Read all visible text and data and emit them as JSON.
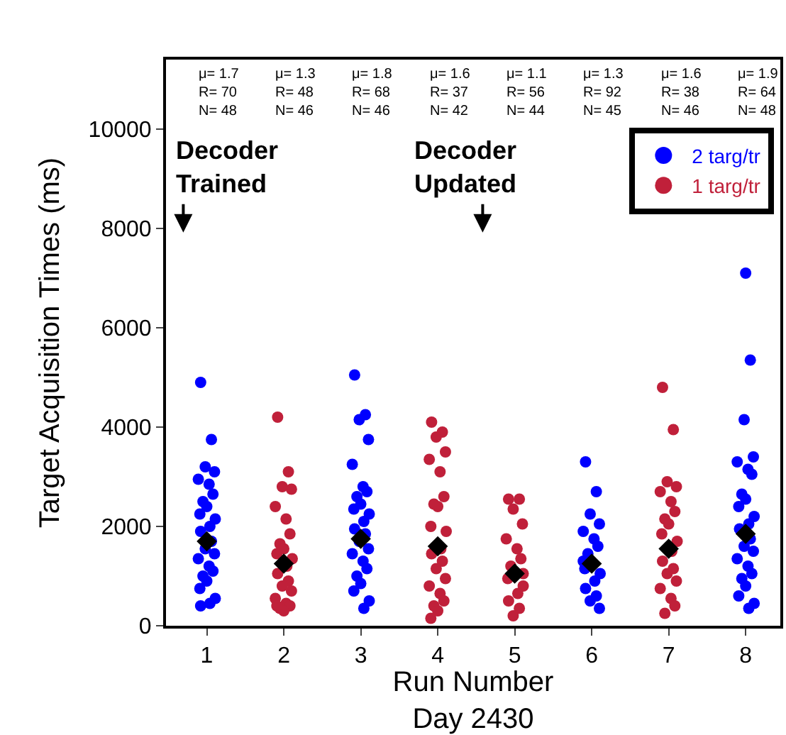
{
  "chart_data": {
    "type": "scatter",
    "ylabel": "Target Acquisition Times (ms)",
    "xlabel": "Run Number\nDay 2430",
    "xlim": [
      0.47,
      8.45
    ],
    "xticks": [
      1,
      2,
      3,
      4,
      5,
      6,
      7,
      8
    ],
    "ylim": [
      0,
      11400
    ],
    "yticks": [
      0,
      2000,
      4000,
      6000,
      8000,
      10000
    ],
    "legend": "top right",
    "series": [
      {
        "name": "2 targ/tr",
        "color": "#0000ff",
        "marker": "circle",
        "x": [
          0.92,
          1.06,
          0.98,
          1.1,
          0.89,
          1.03,
          1.08,
          0.95,
          1.0,
          0.91,
          1.11,
          1.04,
          0.92,
          1.06,
          0.98,
          1.1,
          0.89,
          1.03,
          1.08,
          0.95,
          1.0,
          0.91,
          1.11,
          1.04,
          0.92,
          2.92,
          3.06,
          2.98,
          3.1,
          2.89,
          3.03,
          3.08,
          2.95,
          3.0,
          2.91,
          3.11,
          3.04,
          2.92,
          3.06,
          2.98,
          3.1,
          2.89,
          3.03,
          3.08,
          2.95,
          3.0,
          2.91,
          3.11,
          3.04,
          5.92,
          6.06,
          5.98,
          6.1,
          5.89,
          6.03,
          6.08,
          5.95,
          5.89,
          5.91,
          6.11,
          6.04,
          5.92,
          6.06,
          5.98,
          6.1,
          8.0,
          8.06,
          7.98,
          8.1,
          7.89,
          8.03,
          8.08,
          7.95,
          8.0,
          7.91,
          8.11,
          8.04,
          7.92,
          8.06,
          7.98,
          8.1,
          7.89,
          8.03,
          8.08,
          7.95,
          8.0,
          7.91,
          8.11,
          8.04
        ],
        "values": [
          4900,
          3750,
          3200,
          3100,
          2950,
          2850,
          2650,
          2500,
          2400,
          2250,
          2150,
          2000,
          1900,
          1700,
          1550,
          1450,
          1350,
          1200,
          1100,
          1000,
          900,
          750,
          550,
          450,
          400,
          5050,
          4250,
          4150,
          3750,
          3250,
          2800,
          2700,
          2600,
          2450,
          2350,
          2250,
          2100,
          1950,
          1850,
          1700,
          1550,
          1450,
          1300,
          1150,
          1000,
          850,
          700,
          500,
          350,
          3300,
          2700,
          2250,
          2050,
          1900,
          1750,
          1600,
          1450,
          1300,
          1150,
          1050,
          900,
          750,
          600,
          500,
          350,
          7100,
          5350,
          4150,
          3400,
          3300,
          3150,
          3050,
          2650,
          2550,
          2400,
          2200,
          2050,
          1950,
          1750,
          1600,
          1500,
          1350,
          1200,
          1050,
          950,
          800,
          600,
          450,
          350
        ]
      },
      {
        "name": "1 targ/tr",
        "color": "#c0203a",
        "marker": "circle",
        "x": [
          1.92,
          2.06,
          1.98,
          2.1,
          1.89,
          2.03,
          2.08,
          1.95,
          2.0,
          1.91,
          2.11,
          2.04,
          1.92,
          2.06,
          1.98,
          2.1,
          1.89,
          2.03,
          2.08,
          1.95,
          2.0,
          1.91,
          3.92,
          4.06,
          3.98,
          4.1,
          3.89,
          4.03,
          4.08,
          3.95,
          4.0,
          3.91,
          4.11,
          4.04,
          3.92,
          4.06,
          3.98,
          4.1,
          3.89,
          4.03,
          4.08,
          3.95,
          4.0,
          3.91,
          4.92,
          5.06,
          4.98,
          5.1,
          4.89,
          5.03,
          5.08,
          4.95,
          5.11,
          4.91,
          5.11,
          5.04,
          4.92,
          5.06,
          4.98,
          6.92,
          7.06,
          6.98,
          7.1,
          6.89,
          7.03,
          7.08,
          6.95,
          7.0,
          6.91,
          7.11,
          7.04,
          6.92,
          7.06,
          6.98,
          7.1,
          6.89,
          7.03,
          7.08,
          6.95
        ],
        "values": [
          4200,
          3100,
          2800,
          2750,
          2400,
          2150,
          1850,
          1650,
          1550,
          1450,
          1350,
          1200,
          1050,
          900,
          800,
          700,
          550,
          450,
          400,
          350,
          300,
          400,
          4100,
          3900,
          3800,
          3500,
          3350,
          3100,
          2600,
          2450,
          2400,
          2000,
          1900,
          1550,
          1450,
          1300,
          1150,
          950,
          800,
          650,
          500,
          400,
          300,
          150,
          2550,
          2550,
          2350,
          2050,
          1750,
          1550,
          1350,
          1200,
          1050,
          950,
          800,
          650,
          500,
          350,
          200,
          4800,
          3950,
          2900,
          2800,
          2700,
          2500,
          2300,
          2150,
          2050,
          1850,
          1700,
          1500,
          1300,
          1150,
          1050,
          900,
          750,
          550,
          400,
          250
        ]
      },
      {
        "color": "#000000",
        "marker": "diamond",
        "x": [
          1,
          2,
          3,
          4,
          5,
          6,
          7,
          8
        ],
        "values": [
          1700,
          1250,
          1750,
          1600,
          1050,
          1250,
          1550,
          1850
        ]
      }
    ],
    "annotations": [
      "μ= 1.7\nR= 70\nN= 48",
      "μ= 1.3\nR= 48\nN= 46",
      "μ= 1.8\nR= 68\nN= 46",
      "μ= 1.6\nR= 37\nN= 42",
      "μ= 1.1\nR= 56\nN= 44",
      "μ= 1.3\nR= 92\nN= 45",
      "μ= 1.6\nR= 38\nN= 46",
      "μ= 1.9\nR= 64\nN= 48",
      "Decoder\nTrained",
      "Decoder\nUpdated"
    ]
  }
}
